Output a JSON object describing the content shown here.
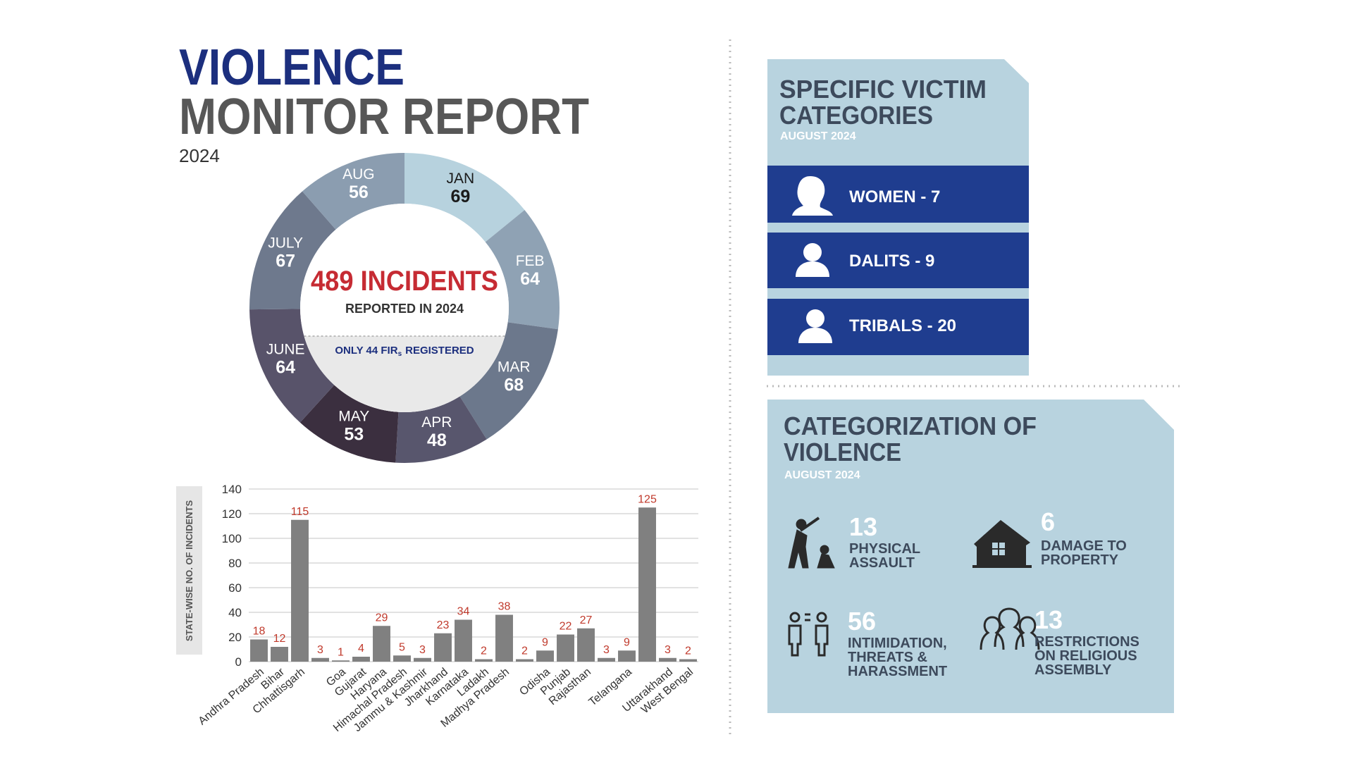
{
  "header": {
    "title": [
      "VIOLENCE",
      "MONITOR REPORT"
    ],
    "year": "2024"
  },
  "chart_data": [
    {
      "type": "pie",
      "categories": [
        "JAN",
        "FEB",
        "MAR",
        "APR",
        "MAY",
        "JUNE",
        "JULY",
        "AUG"
      ],
      "values": [
        69,
        64,
        68,
        48,
        53,
        64,
        67,
        56
      ],
      "colors": [
        "#b7d2de",
        "#8fa2b4",
        "#6c788c",
        "#58566d",
        "#3b2f3f",
        "#58536a",
        "#6e798d",
        "#8b9db0"
      ],
      "label_colors": [
        "#1a1a1a",
        "#ffffff",
        "#ffffff",
        "#ffffff",
        "#ffffff",
        "#ffffff",
        "#ffffff",
        "#ffffff"
      ],
      "center_title": "489 INCIDENTS",
      "center_subtitle": "REPORTED IN 2024",
      "center_note": [
        "ONLY 44 FIR",
        "s",
        "REGISTERED"
      ]
    },
    {
      "type": "bar",
      "y_label": "STATE-WISE NO. OF INCIDENTS",
      "categories": [
        "Andhra Pradesh",
        "Bihar",
        "Chhattisgarh",
        null,
        "Goa",
        "Gujarat",
        "Haryana",
        "Himachal Pradesh",
        "Jammu & Kashmir",
        "Jharkhand",
        "Karnataka",
        "Ladakh",
        "Madhya Pradesh",
        null,
        "Odisha",
        "Punjab",
        "Rajasthan",
        null,
        "Telangana",
        null,
        "Uttarakhand",
        "West Bengal"
      ],
      "values": [
        18,
        12,
        115,
        3,
        1,
        4,
        29,
        5,
        3,
        23,
        34,
        2,
        38,
        2,
        9,
        22,
        27,
        3,
        9,
        125,
        3,
        2
      ],
      "color": "#808080",
      "value_label_color": "#c0392b",
      "ylim": [
        0,
        140
      ],
      "yticks": [
        0,
        20,
        40,
        60,
        80,
        100,
        120,
        140
      ],
      "grid": true
    }
  ],
  "victims": {
    "title": [
      "SPECIFIC VICTIM",
      "CATEGORIES"
    ],
    "subtitle": "AUGUST 2024",
    "items": [
      "WOMEN - 7",
      "DALITS - 9",
      "TRIBALS - 20"
    ]
  },
  "violence": {
    "title": [
      "CATEGORIZATION OF",
      "VIOLENCE"
    ],
    "subtitle": "AUGUST 2024",
    "items": [
      {
        "count": 13,
        "label": [
          "PHYSICAL",
          "ASSAULT"
        ]
      },
      {
        "count": 6,
        "label": [
          "DAMAGE TO",
          "PROPERTY"
        ]
      },
      {
        "count": 56,
        "label": [
          "INTIMIDATION,",
          "THREATS &",
          "HARASSMENT"
        ]
      },
      {
        "count": 13,
        "label": [
          "RESTRICTIONS",
          "ON RELIGIOUS",
          "ASSEMBLY"
        ]
      }
    ]
  }
}
